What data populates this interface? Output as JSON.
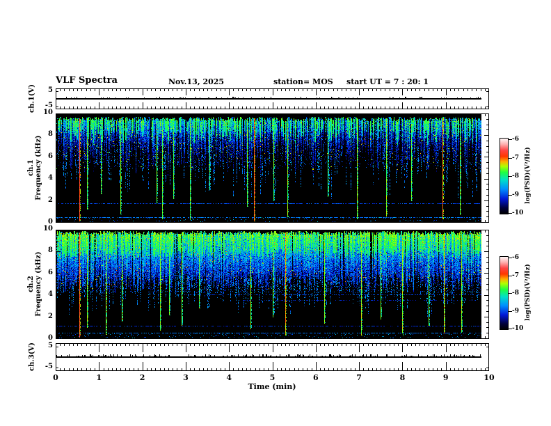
{
  "header": {
    "title": "VLF Spectra",
    "date": "Nov.13, 2025",
    "station": "station= MOS",
    "start_ut": "start UT =  7 : 20: 1"
  },
  "x_axis": {
    "label": "Time (min)",
    "ticks": [
      "0",
      "1",
      "2",
      "3",
      "4",
      "5",
      "6",
      "7",
      "8",
      "9",
      "10"
    ],
    "min": 0,
    "max": 10,
    "minor_step": 0.1
  },
  "panels": {
    "ch1v": {
      "ylabel": "ch.1(V)",
      "yticks": [
        "5",
        "-5"
      ]
    },
    "spec1": {
      "channel": "ch.1",
      "ylabel": "Frequency (kHz)",
      "yticks": [
        "10",
        "8",
        "6",
        "4",
        "2",
        "0"
      ]
    },
    "spec2": {
      "channel": "ch.2",
      "ylabel": "Frequency (kHz)",
      "yticks": [
        "10",
        "8",
        "6",
        "4",
        "2",
        "0"
      ]
    },
    "ch3v": {
      "ylabel": "ch.3(V)",
      "yticks": [
        "5",
        "-5"
      ]
    }
  },
  "colorbar": {
    "label": "log(PSD)(V²/Hz)",
    "ticks": [
      "-6",
      "-7",
      "-8",
      "-9",
      "-10"
    ],
    "min": -10,
    "max": -6
  },
  "chart_data": {
    "type": "heatmap",
    "title": "VLF Spectra, station MOS, start UT 7:20:1, Nov.13 2025",
    "x": {
      "label": "Time (min)",
      "range": [
        0,
        10
      ],
      "data_end_min": 9.82
    },
    "value_scale": {
      "label": "log(PSD)(V²/Hz)",
      "range": [
        -10,
        -6
      ]
    },
    "colormap_stops": [
      [
        0.0,
        "#000000"
      ],
      [
        0.08,
        "#00003a"
      ],
      [
        0.2,
        "#0018d8"
      ],
      [
        0.33,
        "#0090ff"
      ],
      [
        0.45,
        "#00e0c8"
      ],
      [
        0.55,
        "#20ff40"
      ],
      [
        0.63,
        "#b0ff00"
      ],
      [
        0.69,
        "#ffb000"
      ],
      [
        0.76,
        "#ff3800"
      ],
      [
        0.84,
        "#ff4444"
      ],
      [
        0.92,
        "#ffb0b0"
      ],
      [
        1.0,
        "#ffffff"
      ]
    ],
    "panels": [
      {
        "id": "ch1v",
        "type": "line",
        "label": "ch.1(V)",
        "y_range": [
          -6,
          6
        ],
        "y_ticks": [
          5,
          -5
        ],
        "signal": "flat trace near 0 V for full record",
        "seed": 11,
        "blip_prob": 0.06,
        "blip_amp": 1
      },
      {
        "id": "spec1",
        "type": "spectrogram",
        "label": "ch.1 Frequency (kHz)",
        "freq_range": [
          0,
          10
        ],
        "seed": 20251113,
        "column_density": 0.8,
        "top_khz": [
          9.25,
          9.7
        ],
        "bottom_khz_mean": 6.9,
        "bottom_khz_spread": 2.7,
        "body_psd": [
          -8.8,
          -8.1
        ],
        "core_psd": [
          -8.0,
          -7.5
        ],
        "core_prob": 0.45,
        "speckle_lo": 5.0,
        "speckle_hi": 9.4,
        "speckle_p": 0.16,
        "tail_prob": 0.33,
        "tail_len": 2.8,
        "bottom_scatter_p": 0.3,
        "h_lines": [
          {
            "f_khz": 1.7,
            "psd": -9.0,
            "density": 0.55,
            "t_from": 0
          },
          {
            "f_khz": 0.45,
            "psd": -8.8,
            "density": 0.6,
            "t_from": 0
          }
        ],
        "spikes": [
          {
            "t": 0.55,
            "f_bot": 0.1,
            "psd": -6.85
          },
          {
            "t": 0.73,
            "f_bot": 1.2,
            "psd": -7.7
          },
          {
            "t": 1.05,
            "f_bot": 2.6,
            "psd": -7.8
          },
          {
            "t": 1.5,
            "f_bot": 0.8,
            "psd": -7.65
          },
          {
            "t": 2.33,
            "f_bot": 1.8,
            "psd": -7.7
          },
          {
            "t": 2.45,
            "f_bot": 0.3,
            "psd": -7.75
          },
          {
            "t": 2.72,
            "f_bot": 2.2,
            "psd": -7.8
          },
          {
            "t": 3.1,
            "f_bot": 0.2,
            "psd": -7.7
          },
          {
            "t": 3.55,
            "f_bot": 3.0,
            "psd": -7.9
          },
          {
            "t": 4.42,
            "f_bot": 1.5,
            "psd": -7.7
          },
          {
            "t": 4.57,
            "f_bot": 0.15,
            "psd": -6.9
          },
          {
            "t": 5.02,
            "f_bot": 2.0,
            "psd": -7.75
          },
          {
            "t": 5.35,
            "f_bot": 0.5,
            "psd": -7.6
          },
          {
            "t": 6.28,
            "f_bot": 2.4,
            "psd": -7.85
          },
          {
            "t": 6.95,
            "f_bot": 0.3,
            "psd": -7.6
          },
          {
            "t": 7.62,
            "f_bot": 0.6,
            "psd": -7.65
          },
          {
            "t": 8.2,
            "f_bot": 2.0,
            "psd": -7.8
          },
          {
            "t": 8.93,
            "f_bot": 0.3,
            "psd": -7.0
          },
          {
            "t": 9.32,
            "f_bot": 0.7,
            "psd": -7.65
          }
        ]
      },
      {
        "id": "spec2",
        "type": "spectrogram",
        "label": "ch.2 Frequency (kHz)",
        "freq_range": [
          0,
          10
        ],
        "seed": 72001,
        "column_density": 0.95,
        "top_khz": [
          9.5,
          9.9
        ],
        "bottom_khz_mean": 5.7,
        "bottom_khz_spread": 1.5,
        "body_psd": [
          -8.3,
          -7.7
        ],
        "core_psd": [
          -7.8,
          -7.35
        ],
        "core_prob": 0.5,
        "speckle_lo": 4.2,
        "speckle_hi": 9.7,
        "speckle_p": 0.28,
        "tail_prob": 0.4,
        "tail_len": 2.2,
        "bottom_scatter_p": 0.35,
        "h_lines": [
          {
            "f_khz": 4.05,
            "psd": -9.0,
            "density": 0.5,
            "t_from": 2.8
          },
          {
            "f_khz": 3.5,
            "psd": -9.2,
            "density": 0.35,
            "t_from": 4.3
          },
          {
            "f_khz": 1.15,
            "psd": -9.1,
            "density": 0.45,
            "t_from": 0
          },
          {
            "f_khz": 0.5,
            "psd": -8.8,
            "density": 0.6,
            "t_from": 0
          }
        ],
        "spikes": [
          {
            "t": 0.55,
            "f_bot": 0.1,
            "psd": -6.9
          },
          {
            "t": 0.72,
            "f_bot": 1.0,
            "psd": -7.6
          },
          {
            "t": 1.15,
            "f_bot": 0.4,
            "psd": -7.55
          },
          {
            "t": 1.52,
            "f_bot": 1.6,
            "psd": -7.7
          },
          {
            "t": 2.4,
            "f_bot": 0.8,
            "psd": -7.6
          },
          {
            "t": 2.62,
            "f_bot": 2.2,
            "psd": -7.75
          },
          {
            "t": 2.9,
            "f_bot": 1.2,
            "psd": -7.65
          },
          {
            "t": 3.3,
            "f_bot": 2.8,
            "psd": -7.8
          },
          {
            "t": 4.5,
            "f_bot": 0.9,
            "psd": -7.6
          },
          {
            "t": 5.0,
            "f_bot": 2.0,
            "psd": -7.7
          },
          {
            "t": 5.3,
            "f_bot": 0.3,
            "psd": -7.2
          },
          {
            "t": 6.2,
            "f_bot": 1.4,
            "psd": -7.65
          },
          {
            "t": 7.05,
            "f_bot": 0.3,
            "psd": -7.55
          },
          {
            "t": 7.5,
            "f_bot": 1.8,
            "psd": -7.7
          },
          {
            "t": 8.0,
            "f_bot": 0.2,
            "psd": -7.5
          },
          {
            "t": 8.6,
            "f_bot": 1.2,
            "psd": -7.65
          },
          {
            "t": 8.95,
            "f_bot": 0.5,
            "psd": -7.3
          },
          {
            "t": 9.35,
            "f_bot": 0.6,
            "psd": -7.6
          }
        ]
      },
      {
        "id": "ch3v",
        "type": "line",
        "label": "ch.3(V)",
        "y_range": [
          -6.7,
          6.7
        ],
        "y_ticks": [
          5,
          -5
        ],
        "signal": "flat trace near 0 V with small positive blips",
        "seed": 33,
        "blip_prob": 0.2,
        "blip_amp": 2.5
      }
    ]
  }
}
